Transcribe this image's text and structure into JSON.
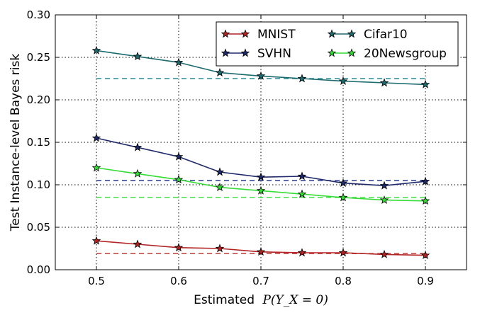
{
  "chart_data": {
    "type": "line",
    "xlabel": "Estimated",
    "xlabel_math": "P(Y_X = 0)",
    "ylabel": "Test Instance-level Bayes risk",
    "xlim": [
      0.45,
      0.95
    ],
    "ylim": [
      0.0,
      0.3
    ],
    "x_ticks": [
      "0.5",
      "0.6",
      "0.7",
      "0.8",
      "0.9"
    ],
    "x_tick_values": [
      0.5,
      0.6,
      0.7,
      0.8,
      0.9
    ],
    "y_ticks": [
      "0.00",
      "0.05",
      "0.10",
      "0.15",
      "0.20",
      "0.25",
      "0.30"
    ],
    "y_tick_values": [
      0.0,
      0.05,
      0.1,
      0.15,
      0.2,
      0.25,
      0.3
    ],
    "grid": true,
    "legend_position": "top-right",
    "x": [
      0.5,
      0.55,
      0.6,
      0.65,
      0.7,
      0.75,
      0.8,
      0.85,
      0.9
    ],
    "series": [
      {
        "name": "MNIST",
        "color": "#b22222",
        "dash_color": "#c0504d",
        "values": [
          0.034,
          0.03,
          0.026,
          0.025,
          0.021,
          0.02,
          0.02,
          0.018,
          0.017
        ],
        "baseline": 0.019
      },
      {
        "name": "SVHN",
        "color": "#1f2a6b",
        "dash_color": "#2a3a8c",
        "values": [
          0.155,
          0.144,
          0.133,
          0.115,
          0.109,
          0.11,
          0.102,
          0.099,
          0.104
        ],
        "baseline": 0.105
      },
      {
        "name": "Cifar10",
        "color": "#1c6b6e",
        "dash_color": "#2a8a8f",
        "values": [
          0.258,
          0.251,
          0.244,
          0.232,
          0.228,
          0.225,
          0.222,
          0.22,
          0.218
        ],
        "baseline": 0.225
      },
      {
        "name": "20Newsgroup",
        "color": "#33dd33",
        "dash_color": "#44dd44",
        "values": [
          0.12,
          0.113,
          0.106,
          0.097,
          0.093,
          0.089,
          0.085,
          0.082,
          0.081
        ],
        "baseline": 0.085
      }
    ]
  }
}
